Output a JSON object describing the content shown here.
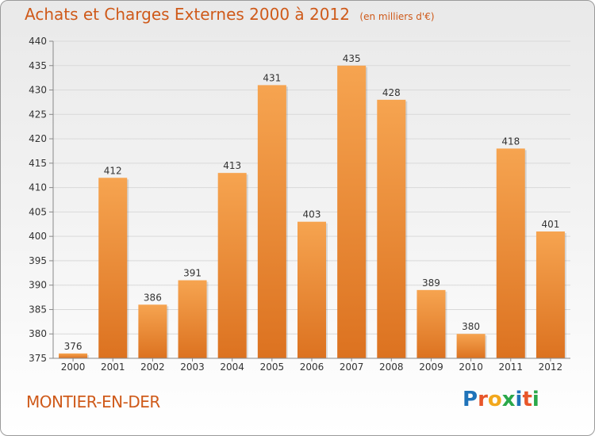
{
  "header": {
    "title": "Achats et Charges Externes 2000 à 2012",
    "subtitle": "(en milliers d'€)"
  },
  "footer": {
    "town": "MONTIER-EN-DER",
    "logo_text": "Proxiti",
    "logo_letters": [
      {
        "char": "P",
        "color": "#1f73b9"
      },
      {
        "char": "r",
        "color": "#e8562a"
      },
      {
        "char": "o",
        "color": "#f2a81d"
      },
      {
        "char": "x",
        "color": "#2aa84a"
      },
      {
        "char": "i",
        "color": "#1f73b9"
      },
      {
        "char": "t",
        "color": "#e8562a"
      },
      {
        "char": "i",
        "color": "#2aa84a"
      }
    ]
  },
  "colors": {
    "bar_light": "#f6a450",
    "bar_dark": "#dc7220",
    "grid": "#d9d9d9",
    "text": "#333333",
    "accent": "#cf5a1a"
  },
  "chart_data": {
    "type": "bar",
    "title": "Achats et Charges Externes 2000 à 2012",
    "subtitle": "(en milliers d'€)",
    "categories": [
      "2000",
      "2001",
      "2002",
      "2003",
      "2004",
      "2005",
      "2006",
      "2007",
      "2008",
      "2009",
      "2010",
      "2011",
      "2012"
    ],
    "values": [
      376,
      412,
      386,
      391,
      413,
      431,
      403,
      435,
      428,
      389,
      380,
      418,
      401
    ],
    "ylim": [
      375,
      440
    ],
    "yticks": [
      375,
      380,
      385,
      390,
      395,
      400,
      405,
      410,
      415,
      420,
      425,
      430,
      435,
      440
    ],
    "grid": true,
    "data_labels": true
  }
}
